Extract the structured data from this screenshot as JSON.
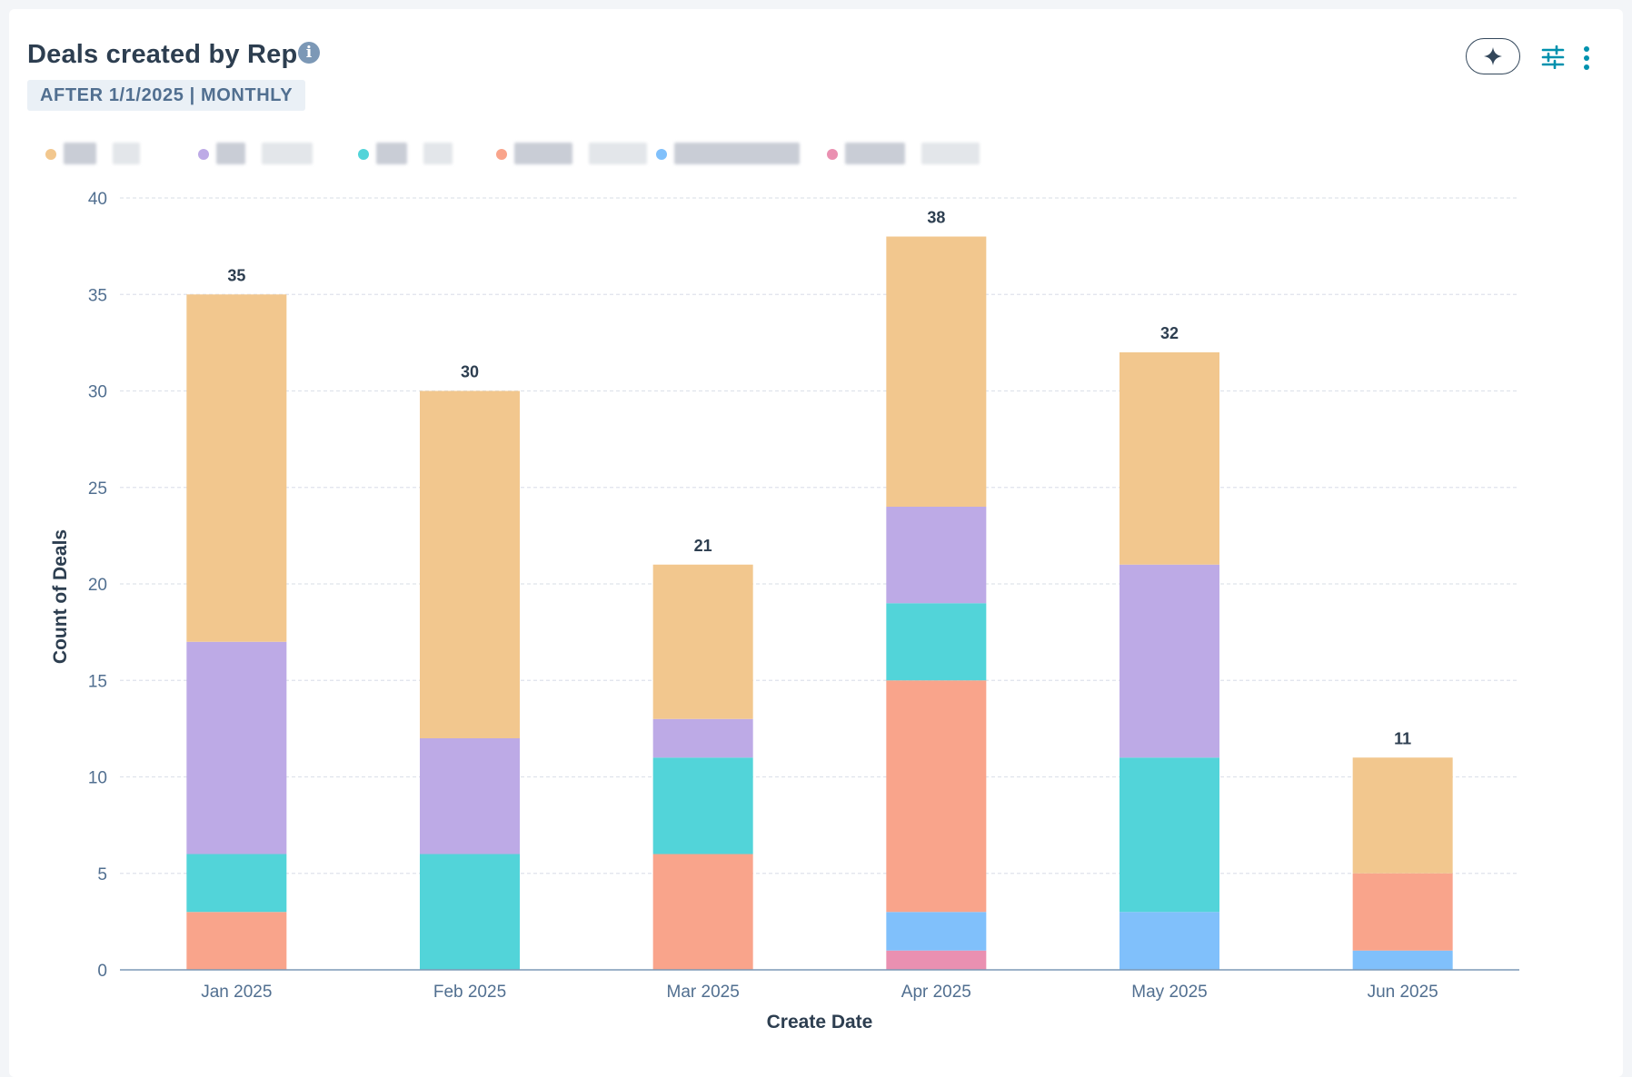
{
  "card": {
    "title": "Deals created by Rep",
    "info_icon": "info-circle-icon",
    "filter_badge": "AFTER 1/1/2025 | MONTHLY",
    "actions": [
      {
        "name": "ai-assist-button",
        "icon": "sparkle-icon"
      },
      {
        "name": "filter-button",
        "icon": "sliders-icon"
      },
      {
        "name": "more-options-button",
        "icon": "vertical-dots-icon"
      }
    ]
  },
  "legend": {
    "note": "",
    "items": [
      {
        "color": "#f2c78e"
      },
      {
        "color": "#bdaae6"
      },
      {
        "color": "#52d4d9"
      },
      {
        "color": "#f9a48b"
      },
      {
        "color": "#80c0fb"
      },
      {
        "color": "#ea90b1"
      }
    ]
  },
  "chart_data": {
    "type": "bar",
    "stacked": true,
    "title": "Deals created by Rep",
    "xlabel": "Create Date",
    "ylabel": "Count of Deals",
    "ylim": [
      0,
      40
    ],
    "yticks": [
      0,
      5,
      10,
      15,
      20,
      25,
      30,
      35,
      40
    ],
    "grid": true,
    "legend_position": "top-left",
    "categories": [
      "Jan 2025",
      "Feb 2025",
      "Mar 2025",
      "Apr 2025",
      "May 2025",
      "Jun 2025"
    ],
    "totals": [
      35,
      30,
      21,
      38,
      32,
      11
    ],
    "series": [
      {
        "color": "#ea90b1",
        "values": [
          0,
          0,
          0,
          1,
          0,
          0
        ]
      },
      {
        "color": "#80c0fb",
        "values": [
          0,
          0,
          0,
          2,
          3,
          1
        ]
      },
      {
        "color": "#f9a48b",
        "values": [
          3,
          0,
          6,
          12,
          0,
          4
        ]
      },
      {
        "color": "#52d4d9",
        "values": [
          3,
          6,
          5,
          4,
          8,
          0
        ]
      },
      {
        "color": "#bdaae6",
        "values": [
          11,
          6,
          2,
          5,
          10,
          0
        ]
      },
      {
        "color": "#f2c78e",
        "values": [
          18,
          18,
          8,
          14,
          11,
          6
        ]
      }
    ]
  }
}
